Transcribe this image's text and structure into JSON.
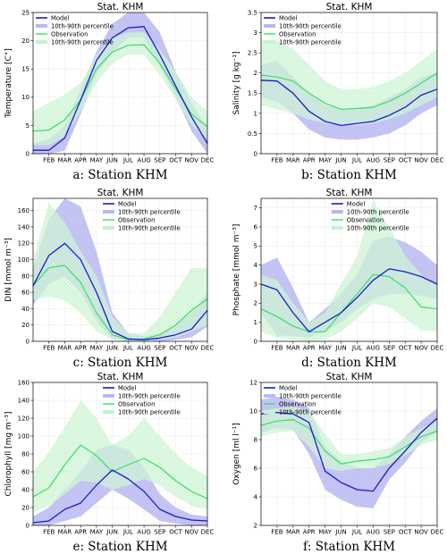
{
  "figure": {
    "months": [
      "FEB",
      "MAR",
      "APR",
      "MAY",
      "JUN",
      "JUL",
      "AUG",
      "SEP",
      "OCT",
      "NOV",
      "DEC"
    ],
    "legend": [
      "Model",
      "10th-90th percentile",
      "Observation",
      "10th-90th percentile"
    ],
    "colors": {
      "model_line": "#1a1acc",
      "model_band": "#b8b8f2",
      "obs_line": "#33e066",
      "obs_band": "#d8f8de"
    }
  },
  "chart_data": [
    {
      "type": "line",
      "title": "Stat. KHM",
      "caption": "a:  Station KHM",
      "ylabel": "Temperature [C°]",
      "ylim": [
        0,
        25
      ],
      "yticks": [
        0,
        5,
        10,
        15,
        20,
        25
      ],
      "legend_position": "top-left",
      "series": [
        {
          "name": "Model",
          "values": [
            0.6,
            0.6,
            2.8,
            9.5,
            16.5,
            20.5,
            22.3,
            22.5,
            17.5,
            12.0,
            6.5,
            1.8
          ],
          "band_low": [
            0.0,
            0.0,
            0.5,
            7.0,
            14.0,
            18.0,
            20.5,
            20.5,
            15.5,
            10.0,
            4.0,
            0.0
          ],
          "band_high": [
            1.8,
            2.5,
            5.0,
            11.5,
            18.0,
            23.0,
            25.0,
            25.0,
            21.5,
            14.5,
            9.0,
            4.5
          ]
        },
        {
          "name": "Observation",
          "values": [
            4.0,
            4.2,
            6.0,
            9.5,
            15.0,
            18.0,
            19.2,
            19.3,
            16.0,
            11.5,
            7.0,
            4.8
          ],
          "band_low": [
            1.5,
            1.5,
            3.0,
            7.5,
            12.5,
            16.0,
            17.5,
            17.5,
            14.0,
            9.5,
            5.0,
            2.5
          ],
          "band_high": [
            7.5,
            9.0,
            10.5,
            12.5,
            17.5,
            20.5,
            21.5,
            21.5,
            18.5,
            14.5,
            10.0,
            7.5
          ]
        }
      ]
    },
    {
      "type": "line",
      "title": "Stat. KHM",
      "caption": "b:  Station KHM",
      "ylabel": "Salinity [g kg⁻¹]",
      "ylim": [
        0,
        3.5
      ],
      "yticks": [
        0,
        0.5,
        1,
        1.5,
        2,
        2.5,
        3,
        3.5
      ],
      "legend_position": "top-left",
      "series": [
        {
          "name": "Model",
          "values": [
            1.82,
            1.8,
            1.5,
            1.05,
            0.8,
            0.7,
            0.75,
            0.8,
            0.95,
            1.15,
            1.45,
            1.6
          ],
          "band_low": [
            1.4,
            1.3,
            1.0,
            0.6,
            0.4,
            0.35,
            0.35,
            0.4,
            0.5,
            0.7,
            1.0,
            1.2
          ],
          "band_high": [
            2.2,
            2.3,
            1.9,
            1.5,
            1.2,
            1.1,
            1.1,
            1.2,
            1.4,
            1.6,
            1.9,
            2.0
          ]
        },
        {
          "name": "Observation",
          "values": [
            1.95,
            1.9,
            1.8,
            1.5,
            1.25,
            1.1,
            1.12,
            1.15,
            1.3,
            1.5,
            1.75,
            2.0
          ],
          "band_low": [
            1.2,
            1.1,
            1.0,
            0.85,
            0.75,
            0.7,
            0.7,
            0.75,
            0.85,
            1.0,
            1.2,
            1.4
          ],
          "band_high": [
            2.8,
            2.8,
            2.6,
            2.2,
            1.8,
            1.6,
            1.6,
            1.65,
            1.8,
            2.0,
            2.3,
            2.6
          ]
        }
      ]
    },
    {
      "type": "line",
      "title": "Stat. KHM",
      "caption": "c:  Station KHM",
      "ylabel": "DIN [mmol m⁻³]",
      "ylim": [
        0,
        175
      ],
      "yticks": [
        0,
        20,
        40,
        60,
        80,
        100,
        120,
        140,
        160
      ],
      "legend_position": "top-right",
      "series": [
        {
          "name": "Model",
          "values": [
            68,
            105,
            120,
            100,
            60,
            12,
            3,
            2,
            4,
            8,
            15,
            38
          ],
          "band_low": [
            45,
            70,
            80,
            60,
            25,
            3,
            0,
            0,
            0,
            2,
            5,
            18
          ],
          "band_high": [
            90,
            150,
            175,
            165,
            110,
            35,
            10,
            6,
            10,
            20,
            35,
            60
          ]
        },
        {
          "name": "Observation",
          "values": [
            68,
            90,
            93,
            72,
            35,
            8,
            2,
            3,
            8,
            20,
            38,
            52
          ],
          "band_low": [
            50,
            55,
            50,
            35,
            12,
            2,
            0,
            0,
            2,
            5,
            12,
            20
          ],
          "band_high": [
            100,
            170,
            145,
            110,
            80,
            30,
            10,
            10,
            30,
            60,
            90,
            90
          ]
        }
      ]
    },
    {
      "type": "line",
      "title": "Stat. KHM",
      "caption": "d:  Station KHM",
      "ylabel": "Phosphate [mmol m⁻³]",
      "ylim": [
        0,
        7.5
      ],
      "yticks": [
        0,
        1,
        2,
        3,
        4,
        5,
        6,
        7
      ],
      "legend_position": "top-right",
      "series": [
        {
          "name": "Model",
          "values": [
            3.0,
            2.7,
            1.5,
            0.5,
            1.0,
            1.5,
            2.3,
            3.2,
            3.8,
            3.65,
            3.4,
            3.0
          ],
          "band_low": [
            1.5,
            0.3,
            0.3,
            0.2,
            0.5,
            1.0,
            1.7,
            2.2,
            2.5,
            2.5,
            2.4,
            2.2
          ],
          "band_high": [
            4.0,
            4.4,
            2.8,
            1.0,
            1.7,
            2.5,
            3.5,
            5.3,
            5.5,
            5.2,
            4.7,
            4.0
          ]
        },
        {
          "name": "Observation",
          "values": [
            1.7,
            1.3,
            0.8,
            0.5,
            0.5,
            1.5,
            2.5,
            3.5,
            3.4,
            2.8,
            1.8,
            1.7
          ],
          "band_low": [
            0.5,
            0.2,
            0.1,
            0.0,
            0.1,
            0.5,
            1.2,
            2.0,
            1.8,
            1.2,
            0.6,
            0.5
          ],
          "band_high": [
            3.5,
            3.2,
            2.0,
            1.0,
            1.5,
            3.0,
            4.5,
            7.4,
            6.0,
            4.5,
            3.5,
            3.0
          ]
        }
      ]
    },
    {
      "type": "line",
      "title": "Stat. KHM",
      "caption": "e:  Station KHM",
      "ylabel": "Chlorophyll [mg m⁻³]",
      "ylim": [
        0,
        160
      ],
      "yticks": [
        0,
        20,
        40,
        60,
        80,
        100,
        120,
        140,
        160
      ],
      "legend_position": "top-right",
      "series": [
        {
          "name": "Model",
          "values": [
            3,
            5,
            18,
            25,
            45,
            62,
            52,
            38,
            18,
            10,
            6,
            5
          ],
          "band_low": [
            0,
            0,
            5,
            10,
            25,
            40,
            30,
            18,
            5,
            2,
            0,
            0
          ],
          "band_high": [
            10,
            20,
            40,
            60,
            85,
            90,
            85,
            65,
            35,
            20,
            12,
            10
          ]
        },
        {
          "name": "Observation",
          "values": [
            32,
            42,
            68,
            90,
            78,
            60,
            68,
            75,
            65,
            50,
            38,
            30
          ],
          "band_low": [
            15,
            22,
            35,
            50,
            48,
            40,
            45,
            52,
            45,
            32,
            22,
            18
          ],
          "band_high": [
            60,
            82,
            110,
            140,
            120,
            90,
            100,
            120,
            100,
            80,
            65,
            55
          ]
        }
      ]
    },
    {
      "type": "line",
      "title": "Stat. KHM",
      "caption": "f:  Station KHM",
      "ylabel": "Oxygen [ml l⁻¹]",
      "ylim": [
        2,
        12
      ],
      "yticks": [
        2,
        4,
        6,
        8,
        10,
        12
      ],
      "legend_position": "top-left",
      "series": [
        {
          "name": "Model",
          "values": [
            9.8,
            9.9,
            9.8,
            9.2,
            5.8,
            5.0,
            4.5,
            4.4,
            6.0,
            7.2,
            8.5,
            9.5
          ],
          "band_low": [
            8.5,
            8.8,
            8.7,
            7.0,
            4.5,
            3.8,
            3.3,
            3.2,
            5.2,
            6.4,
            7.8,
            8.5
          ],
          "band_high": [
            10.8,
            11.0,
            10.8,
            10.2,
            7.5,
            6.5,
            6.0,
            6.0,
            7.0,
            8.2,
            9.3,
            10.2
          ]
        },
        {
          "name": "Observation",
          "values": [
            9.0,
            9.3,
            9.4,
            8.8,
            7.2,
            6.3,
            6.5,
            6.6,
            6.8,
            7.5,
            8.2,
            8.6
          ],
          "band_low": [
            8.2,
            8.5,
            8.6,
            7.5,
            6.0,
            5.8,
            6.0,
            6.0,
            6.3,
            6.9,
            7.6,
            8.0
          ],
          "band_high": [
            10.0,
            10.2,
            10.3,
            10.0,
            8.4,
            7.0,
            7.0,
            7.2,
            7.4,
            8.2,
            8.8,
            9.3
          ]
        }
      ]
    }
  ]
}
